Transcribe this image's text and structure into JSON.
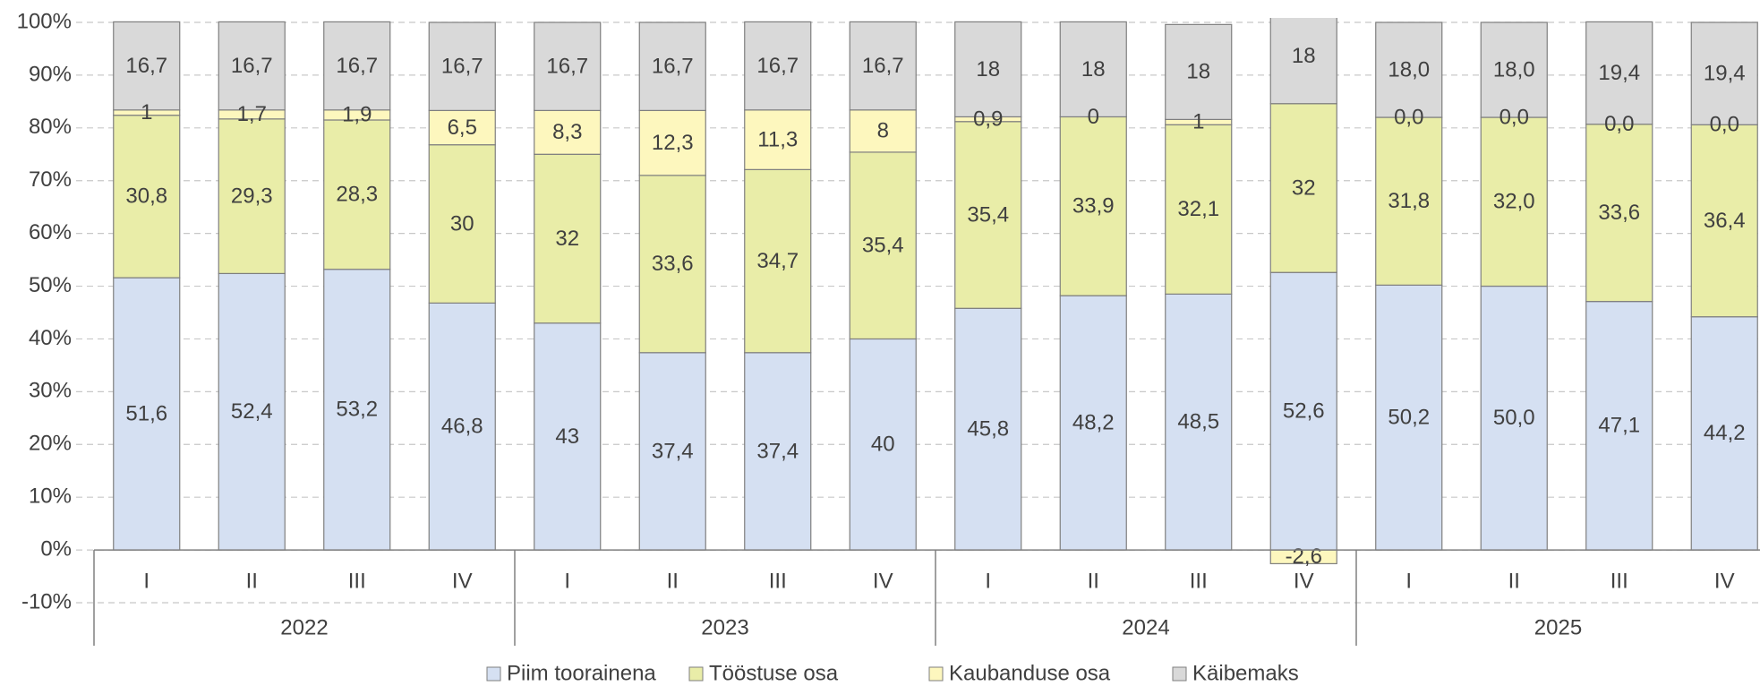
{
  "chart_data": {
    "type": "stacked_bar",
    "categories": [
      "I",
      "II",
      "III",
      "IV",
      "I",
      "II",
      "III",
      "IV",
      "I",
      "II",
      "III",
      "IV",
      "I",
      "II",
      "III",
      "IV"
    ],
    "groups": [
      "2022",
      "2023",
      "2024",
      "2025"
    ],
    "series": [
      {
        "name": "Piim toorainena",
        "color": "#d5e0f2",
        "values": [
          51.6,
          52.4,
          53.2,
          46.8,
          43,
          37.4,
          37.4,
          40,
          45.8,
          48.2,
          48.5,
          52.6,
          50.2,
          50.0,
          47.1,
          44.2
        ],
        "value_labels": [
          "51,6",
          "52,4",
          "53,2",
          "46,8",
          "43",
          "37,4",
          "37,4",
          "40",
          "45,8",
          "48,2",
          "48,5",
          "52,6",
          "50,2",
          "50,0",
          "47,1",
          "44,2"
        ]
      },
      {
        "name": "Tööstuse osa",
        "color": "#e9eda8",
        "values": [
          30.8,
          29.3,
          28.3,
          30,
          32,
          33.6,
          34.7,
          35.4,
          35.4,
          33.9,
          32.1,
          32,
          31.8,
          32.0,
          33.6,
          36.4
        ],
        "value_labels": [
          "30,8",
          "29,3",
          "28,3",
          "30",
          "32",
          "33,6",
          "34,7",
          "35,4",
          "35,4",
          "33,9",
          "32,1",
          "32",
          "31,8",
          "32,0",
          "33,6",
          "36,4"
        ]
      },
      {
        "name": "Kaubanduse osa",
        "color": "#fdf7be",
        "values": [
          1,
          1.7,
          1.9,
          6.5,
          8.3,
          12.3,
          11.3,
          8,
          0.9,
          0,
          1,
          -2.6,
          0.0,
          0.0,
          0.0,
          0.0
        ],
        "value_labels": [
          "1",
          "1,7",
          "1,9",
          "6,5",
          "8,3",
          "12,3",
          "11,3",
          "8",
          "0,9",
          "0",
          "1",
          "-2,6",
          "0,0",
          "0,0",
          "0,0",
          "0,0"
        ]
      },
      {
        "name": "Käibemaks",
        "color": "#d9d9d9",
        "values": [
          16.7,
          16.7,
          16.7,
          16.7,
          16.7,
          16.7,
          16.7,
          16.7,
          18,
          18,
          18,
          18,
          18.0,
          18.0,
          19.4,
          19.4
        ],
        "value_labels": [
          "16,7",
          "16,7",
          "16,7",
          "16,7",
          "16,7",
          "16,7",
          "16,7",
          "16,7",
          "18",
          "18",
          "18",
          "18",
          "18,0",
          "18,0",
          "19,4",
          "19,4"
        ]
      }
    ],
    "ylim": [
      -10,
      100
    ],
    "yticks": [
      {
        "value": -10,
        "label": "-10%"
      },
      {
        "value": 0,
        "label": "0%"
      },
      {
        "value": 10,
        "label": "10%"
      },
      {
        "value": 20,
        "label": "20%"
      },
      {
        "value": 30,
        "label": "30%"
      },
      {
        "value": 40,
        "label": "40%"
      },
      {
        "value": 50,
        "label": "50%"
      },
      {
        "value": 60,
        "label": "60%"
      },
      {
        "value": 70,
        "label": "70%"
      },
      {
        "value": 80,
        "label": "80%"
      },
      {
        "value": 90,
        "label": "90%"
      },
      {
        "value": 100,
        "label": "100%"
      }
    ],
    "grid": true,
    "legend": "bottom"
  }
}
